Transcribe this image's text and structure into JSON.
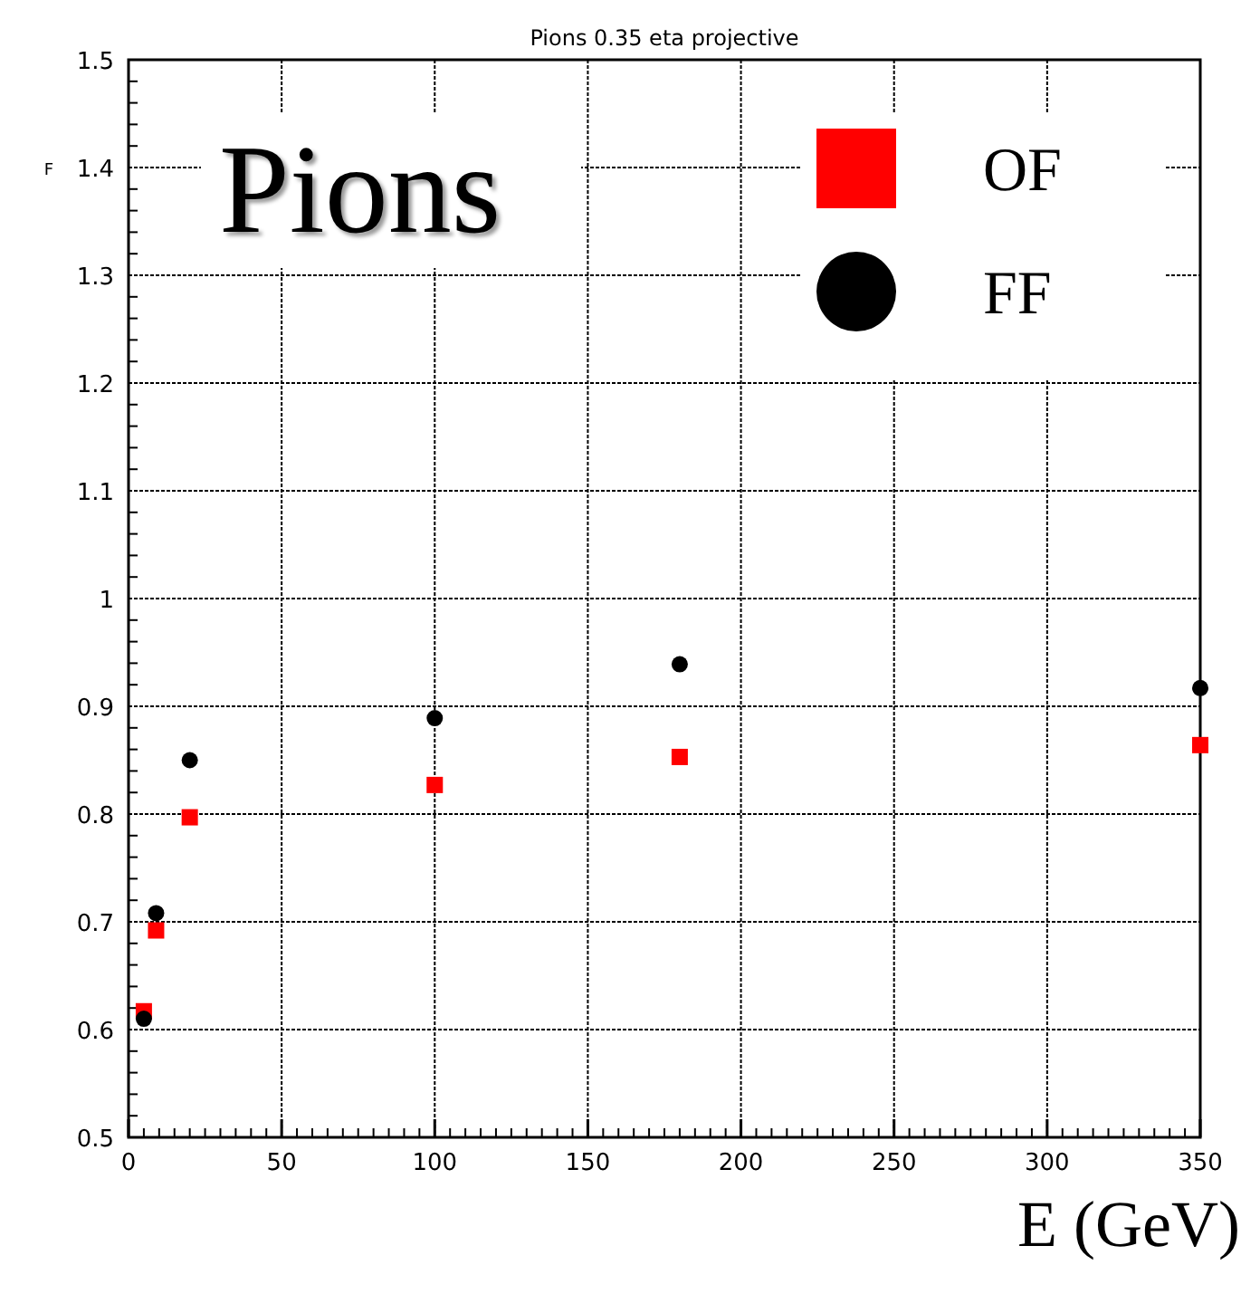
{
  "chart_data": {
    "type": "scatter",
    "title": "Pions 0.35 eta projective",
    "ylabel": "F",
    "xlabel": "E (GeV)",
    "annotations": [
      "Pions"
    ],
    "xlim": [
      0,
      350
    ],
    "xticks": [
      0,
      50,
      100,
      150,
      200,
      250,
      300,
      350
    ],
    "ylim": [
      0.5,
      1.5
    ],
    "yticks": [
      0.5,
      0.6,
      0.7,
      0.8,
      0.9,
      1,
      1.1,
      1.2,
      1.3,
      1.4,
      1.5
    ],
    "grid": true,
    "legend": "top right",
    "series": [
      {
        "name": "OF",
        "color": "#ff0000",
        "marker": "square",
        "x": [
          5,
          9,
          20,
          100,
          180,
          350
        ],
        "values": [
          0.617,
          0.692,
          0.797,
          0.827,
          0.853,
          0.864
        ]
      },
      {
        "name": "FF",
        "color": "#000000",
        "marker": "circle",
        "x": [
          5,
          9,
          20,
          100,
          180,
          350
        ],
        "values": [
          0.61,
          0.708,
          0.85,
          0.889,
          0.939,
          0.917
        ]
      }
    ]
  }
}
